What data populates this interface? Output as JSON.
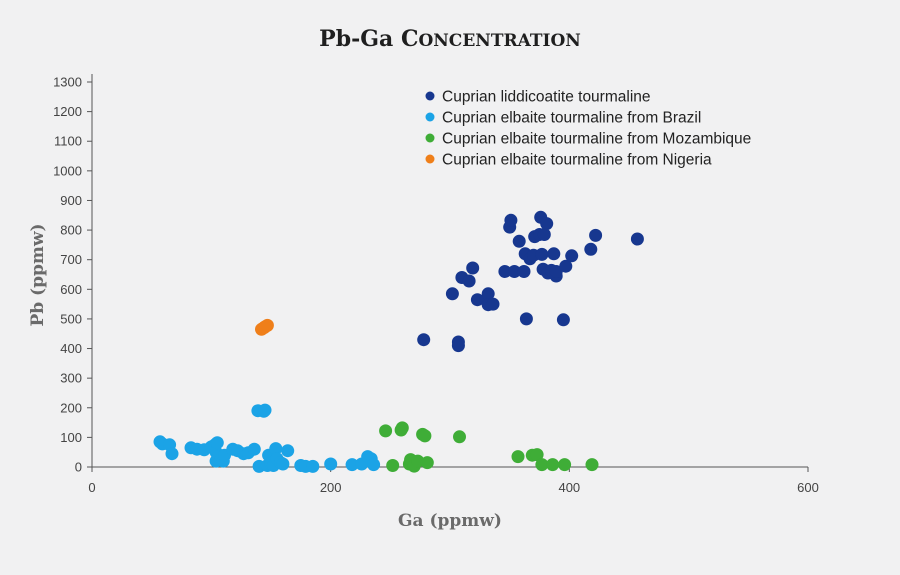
{
  "chart_data": {
    "type": "scatter",
    "title": "Pb-Ga Concentration",
    "xlabel": "Ga (ppmw)",
    "ylabel": "Pb (ppmw)",
    "xlim": [
      0,
      600
    ],
    "ylim": [
      0,
      1300
    ],
    "xticks": [
      0,
      200,
      400,
      600
    ],
    "yticks": [
      0,
      100,
      200,
      300,
      400,
      500,
      600,
      700,
      800,
      900,
      1000,
      1100,
      1200,
      1300
    ],
    "grid": false,
    "legend_position": "top-right",
    "series": [
      {
        "name": "Cuprian liddicoatite tourmaline",
        "color": "#17378f",
        "points": [
          [
            278,
            430
          ],
          [
            307,
            410
          ],
          [
            307,
            422
          ],
          [
            302,
            585
          ],
          [
            310,
            640
          ],
          [
            316,
            628
          ],
          [
            319,
            672
          ],
          [
            323,
            565
          ],
          [
            330,
            565
          ],
          [
            332,
            585
          ],
          [
            332,
            548
          ],
          [
            336,
            550
          ],
          [
            346,
            660
          ],
          [
            350,
            810
          ],
          [
            351,
            833
          ],
          [
            354,
            660
          ],
          [
            358,
            762
          ],
          [
            362,
            660
          ],
          [
            363,
            720
          ],
          [
            364,
            500
          ],
          [
            367,
            703
          ],
          [
            370,
            715
          ],
          [
            371,
            778
          ],
          [
            375,
            785
          ],
          [
            376,
            843
          ],
          [
            377,
            718
          ],
          [
            378,
            668
          ],
          [
            379,
            785
          ],
          [
            381,
            822
          ],
          [
            382,
            655
          ],
          [
            385,
            664
          ],
          [
            387,
            720
          ],
          [
            389,
            645
          ],
          [
            389,
            660
          ],
          [
            395,
            497
          ],
          [
            397,
            678
          ],
          [
            402,
            713
          ],
          [
            418,
            735
          ],
          [
            422,
            782
          ],
          [
            457,
            770
          ]
        ]
      },
      {
        "name": "Cuprian elbaite tourmaline from Brazil",
        "color": "#1ba3e6",
        "points": [
          [
            57,
            85
          ],
          [
            59,
            78
          ],
          [
            65,
            75
          ],
          [
            67,
            45
          ],
          [
            83,
            65
          ],
          [
            88,
            60
          ],
          [
            94,
            58
          ],
          [
            100,
            68
          ],
          [
            103,
            75
          ],
          [
            104,
            50
          ],
          [
            104,
            20
          ],
          [
            105,
            82
          ],
          [
            106,
            35
          ],
          [
            108,
            25
          ],
          [
            110,
            20
          ],
          [
            111,
            40
          ],
          [
            118,
            60
          ],
          [
            122,
            55
          ],
          [
            127,
            45
          ],
          [
            131,
            48
          ],
          [
            136,
            60
          ],
          [
            139,
            190
          ],
          [
            140,
            2
          ],
          [
            144,
            188
          ],
          [
            145,
            192
          ],
          [
            147,
            5
          ],
          [
            148,
            40
          ],
          [
            150,
            12
          ],
          [
            152,
            5
          ],
          [
            154,
            62
          ],
          [
            155,
            28
          ],
          [
            158,
            15
          ],
          [
            160,
            10
          ],
          [
            164,
            55
          ],
          [
            175,
            5
          ],
          [
            179,
            2
          ],
          [
            185,
            2
          ],
          [
            200,
            10
          ],
          [
            218,
            8
          ],
          [
            226,
            10
          ],
          [
            231,
            35
          ],
          [
            234,
            28
          ],
          [
            236,
            8
          ]
        ]
      },
      {
        "name": "Cuprian elbaite tourmaline from Mozambique",
        "color": "#3fad37",
        "points": [
          [
            246,
            122
          ],
          [
            252,
            5
          ],
          [
            259,
            125
          ],
          [
            260,
            132
          ],
          [
            266,
            10
          ],
          [
            267,
            25
          ],
          [
            270,
            3
          ],
          [
            273,
            20
          ],
          [
            277,
            110
          ],
          [
            279,
            105
          ],
          [
            281,
            15
          ],
          [
            308,
            102
          ],
          [
            357,
            35
          ],
          [
            369,
            40
          ],
          [
            373,
            42
          ],
          [
            377,
            8
          ],
          [
            386,
            8
          ],
          [
            396,
            8
          ],
          [
            419,
            8
          ]
        ]
      },
      {
        "name": "Cuprian elbaite tourmaline from Nigeria",
        "color": "#ef7f1a",
        "points": [
          [
            142,
            465
          ],
          [
            144,
            470
          ],
          [
            145,
            473
          ],
          [
            147,
            478
          ]
        ]
      }
    ]
  }
}
